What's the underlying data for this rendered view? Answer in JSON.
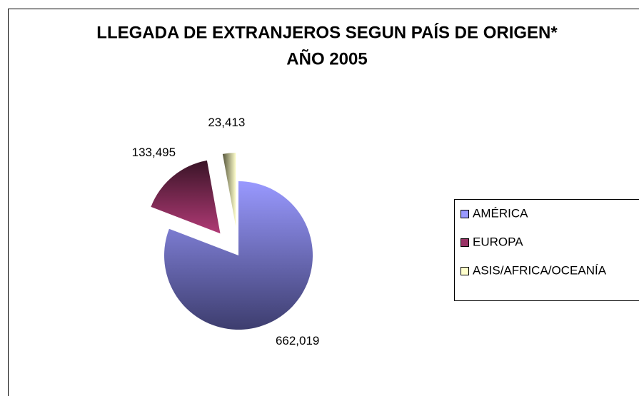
{
  "chart_data": {
    "type": "pie",
    "title": "LLEGADA DE EXTRANJEROS SEGUN PAÍS DE ORIGEN*",
    "subtitle": "AÑO 2005",
    "categories": [
      "AMÉRICA",
      "EUROPA",
      "ASIS/AFRICA/OCEANÍA"
    ],
    "values": [
      662019,
      133495,
      23413
    ],
    "value_labels": [
      "662,019",
      "133,495",
      "23,413"
    ],
    "colors": [
      "#9999ff",
      "#993366",
      "#ffffcc"
    ],
    "legend": "right"
  }
}
